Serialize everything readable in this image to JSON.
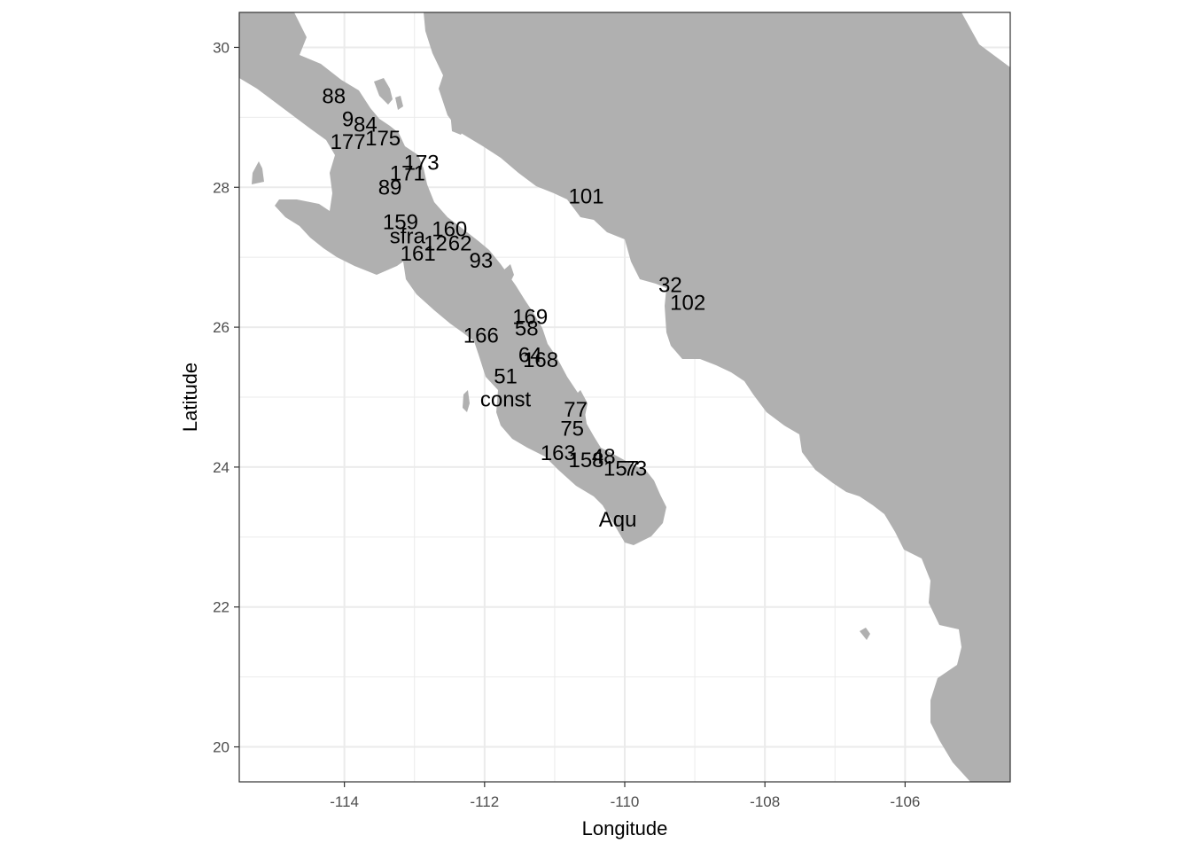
{
  "chart_data": {
    "type": "map",
    "xlabel": "Longitude",
    "ylabel": "Latitude",
    "xlim": [
      -115.5,
      -104.5
    ],
    "ylim": [
      19.5,
      30.5
    ],
    "x_ticks": [
      -114,
      -112,
      -110,
      -108,
      -106
    ],
    "y_ticks": [
      20,
      22,
      24,
      26,
      28,
      30
    ],
    "grid": true,
    "colors": {
      "land": "#b0b0b0",
      "panel_bg": "#ffffff",
      "grid": "#ebebeb",
      "border": "#333333",
      "text": "#000000",
      "tick_text": "#4d4d4d"
    },
    "sites": [
      {
        "label": "88",
        "lon": -114.15,
        "lat": 29.3
      },
      {
        "label": "9",
        "lon": -113.95,
        "lat": 28.97
      },
      {
        "label": "84",
        "lon": -113.7,
        "lat": 28.9
      },
      {
        "label": "177",
        "lon": -113.95,
        "lat": 28.65
      },
      {
        "label": "175",
        "lon": -113.45,
        "lat": 28.7
      },
      {
        "label": "173",
        "lon": -112.9,
        "lat": 28.35
      },
      {
        "label": "171",
        "lon": -113.1,
        "lat": 28.2
      },
      {
        "label": "89",
        "lon": -113.35,
        "lat": 28.0
      },
      {
        "label": "101",
        "lon": -110.55,
        "lat": 27.87
      },
      {
        "label": "159",
        "lon": -113.2,
        "lat": 27.5
      },
      {
        "label": "sfra",
        "lon": -113.1,
        "lat": 27.3
      },
      {
        "label": "160",
        "lon": -112.5,
        "lat": 27.4
      },
      {
        "label": "12",
        "lon": -112.7,
        "lat": 27.2
      },
      {
        "label": "62",
        "lon": -112.35,
        "lat": 27.2
      },
      {
        "label": "161",
        "lon": -112.95,
        "lat": 27.05
      },
      {
        "label": "93",
        "lon": -112.05,
        "lat": 26.95
      },
      {
        "label": "32",
        "lon": -109.35,
        "lat": 26.6
      },
      {
        "label": "102",
        "lon": -109.1,
        "lat": 26.35
      },
      {
        "label": "169",
        "lon": -111.35,
        "lat": 26.15
      },
      {
        "label": "58",
        "lon": -111.4,
        "lat": 25.98
      },
      {
        "label": "166",
        "lon": -112.05,
        "lat": 25.88
      },
      {
        "label": "64",
        "lon": -111.35,
        "lat": 25.6
      },
      {
        "label": "168",
        "lon": -111.2,
        "lat": 25.53
      },
      {
        "label": "51",
        "lon": -111.7,
        "lat": 25.3
      },
      {
        "label": "const",
        "lon": -111.7,
        "lat": 24.97
      },
      {
        "label": "77",
        "lon": -110.7,
        "lat": 24.82
      },
      {
        "label": "75",
        "lon": -110.75,
        "lat": 24.55
      },
      {
        "label": "163",
        "lon": -110.95,
        "lat": 24.2
      },
      {
        "label": "48",
        "lon": -110.3,
        "lat": 24.15
      },
      {
        "label": "158",
        "lon": -110.55,
        "lat": 24.1
      },
      {
        "label": "157",
        "lon": -110.05,
        "lat": 23.98
      },
      {
        "label": "73",
        "lon": -109.85,
        "lat": 23.98
      },
      {
        "label": "Aqu",
        "lon": -110.1,
        "lat": 23.25
      }
    ]
  }
}
